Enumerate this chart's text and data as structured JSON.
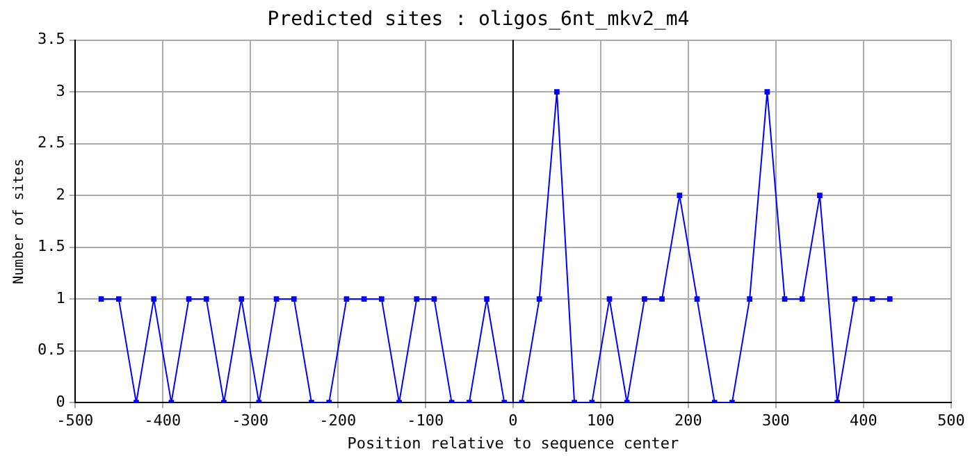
{
  "chart_data": {
    "type": "line",
    "title": "Predicted sites : oligos_6nt_mkv2_m4",
    "xlabel": "Position relative to sequence center",
    "ylabel": "Number of sites",
    "x": [
      -470,
      -450,
      -430,
      -410,
      -390,
      -370,
      -350,
      -330,
      -310,
      -290,
      -270,
      -250,
      -230,
      -210,
      -190,
      -170,
      -150,
      -130,
      -110,
      -90,
      -70,
      -50,
      -30,
      -10,
      10,
      30,
      50,
      70,
      90,
      110,
      130,
      150,
      170,
      190,
      210,
      230,
      250,
      270,
      290,
      310,
      330,
      350,
      370,
      390,
      410,
      430
    ],
    "series": [
      {
        "color": "#0000ff",
        "values": [
          1,
          1,
          0,
          1,
          0,
          1,
          1,
          0,
          1,
          0,
          1,
          1,
          0,
          0,
          1,
          1,
          1,
          0,
          1,
          1,
          0,
          0,
          1,
          0,
          0,
          1,
          3,
          0,
          0,
          1,
          0,
          1,
          1,
          2,
          1,
          0,
          0,
          1,
          3,
          1,
          1,
          2,
          0,
          1,
          1,
          1
        ]
      }
    ],
    "xlim": [
      -500,
      500
    ],
    "xticks": [
      -500,
      -400,
      -300,
      -200,
      -100,
      0,
      100,
      200,
      300,
      400,
      500
    ],
    "ylim": [
      0,
      3.5
    ],
    "yticks": [
      0,
      0.5,
      1,
      1.5,
      2,
      2.5,
      3,
      3.5
    ],
    "ref_lines": [
      {
        "axis": "x",
        "value": 0,
        "color": "#000000"
      }
    ],
    "grid": true,
    "legend": false,
    "marker": "square",
    "line_style": "solid"
  }
}
